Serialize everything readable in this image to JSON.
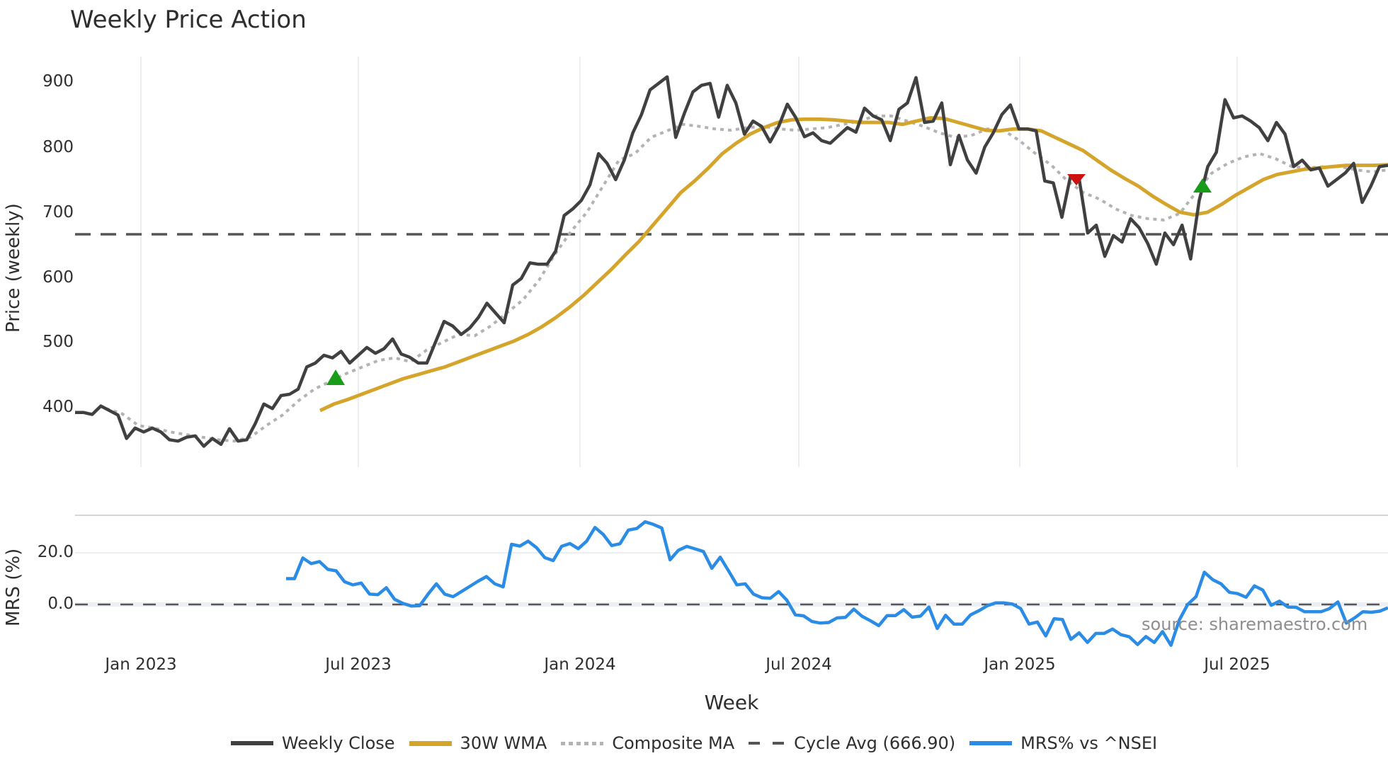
{
  "title": "Weekly Price Action",
  "colors": {
    "close": "#404040",
    "wma": "#d4a52a",
    "composite": "#b3b3b3",
    "cycle": "#555555",
    "mrs": "#2b8ce6",
    "buy": "#1a9c1a",
    "sell": "#cc1111",
    "grid": "#ebeef2"
  },
  "price_panel": {
    "ylabel": "Price (weekly)",
    "yticks": [
      "900",
      "800",
      "700",
      "600",
      "500",
      "400"
    ]
  },
  "mrs_panel": {
    "ylabel": "MRS (%)",
    "yticks": [
      "20.0",
      "0.0"
    ]
  },
  "xaxis": {
    "label": "Week",
    "ticks": [
      "Jan 2023",
      "Jul 2023",
      "Jan 2024",
      "Jul 2024",
      "Jan 2025",
      "Jul 2025"
    ]
  },
  "source": "source: sharemaestro.com",
  "legend": [
    {
      "label": "Weekly Close"
    },
    {
      "label": "30W WMA"
    },
    {
      "label": "Composite MA"
    },
    {
      "label": "Cycle Avg (666.90)"
    },
    {
      "label": "MRS% vs ^NSEI"
    }
  ],
  "chart_data": [
    {
      "type": "line",
      "title": "Weekly Price Action",
      "xlabel": "Week",
      "ylabel": "Price (weekly)",
      "ylim": [
        310,
        940
      ],
      "x_ticks": [
        "Jan 2023",
        "Jul 2023",
        "Jan 2024",
        "Jul 2024",
        "Jan 2025",
        "Jul 2025"
      ],
      "grid": true,
      "legend_position": "bottom",
      "hline": {
        "name": "Cycle Avg",
        "value": 666.9
      },
      "series": [
        {
          "name": "Weekly Close",
          "values": [
            392,
            392,
            389,
            402,
            395,
            388,
            352,
            368,
            362,
            368,
            362,
            350,
            348,
            354,
            356,
            340,
            352,
            343,
            367,
            348,
            350,
            375,
            405,
            398,
            418,
            420,
            428,
            462,
            468,
            480,
            476,
            486,
            468,
            480,
            492,
            483,
            490,
            505,
            482,
            477,
            468,
            468,
            500,
            532,
            525,
            512,
            522,
            538,
            560,
            545,
            530,
            588,
            598,
            622,
            620,
            620,
            640,
            695,
            705,
            718,
            742,
            790,
            775,
            750,
            780,
            822,
            850,
            888,
            898,
            908,
            815,
            852,
            885,
            895,
            898,
            846,
            895,
            868,
            820,
            840,
            832,
            808,
            832,
            866,
            845,
            816,
            822,
            810,
            806,
            818,
            830,
            823,
            860,
            848,
            842,
            810,
            858,
            868,
            907,
            838,
            840,
            868,
            773,
            818,
            780,
            760,
            800,
            822,
            850,
            865,
            828,
            828,
            825,
            748,
            745,
            692,
            755,
            752,
            668,
            680,
            632,
            664,
            654,
            690,
            676,
            652,
            620,
            668,
            650,
            680,
            628,
            718,
            770,
            792,
            873,
            845,
            848,
            840,
            830,
            810,
            838,
            820,
            770,
            780,
            765,
            768,
            740,
            750,
            760,
            775,
            715,
            740,
            770,
            772
          ]
        },
        {
          "name": "30W WMA",
          "values": [
            395,
            405,
            412,
            420,
            428,
            436,
            444,
            450,
            456,
            462,
            470,
            478,
            486,
            494,
            502,
            512,
            524,
            538,
            554,
            572,
            592,
            612,
            634,
            655,
            680,
            705,
            730,
            748,
            768,
            790,
            806,
            820,
            830,
            838,
            842,
            843,
            843,
            842,
            840,
            838,
            838,
            838,
            835,
            840,
            845,
            844,
            838,
            832,
            826,
            825,
            828,
            828,
            825,
            815,
            805,
            795,
            780,
            765,
            752,
            740,
            725,
            712,
            700,
            696,
            700,
            712,
            726,
            738,
            750,
            758,
            762,
            766,
            768,
            770,
            772,
            772,
            772,
            773
          ]
        },
        {
          "name": "Composite MA",
          "values": [
            398,
            390,
            372,
            368,
            362,
            358,
            354,
            350,
            348,
            354,
            372,
            388,
            410,
            428,
            440,
            452,
            462,
            472,
            476,
            470,
            488,
            500,
            512,
            510,
            525,
            545,
            565,
            595,
            635,
            670,
            700,
            740,
            780,
            790,
            815,
            825,
            835,
            832,
            828,
            826,
            830,
            832,
            828,
            826,
            828,
            830,
            835,
            840,
            848,
            848,
            840,
            832,
            822,
            815,
            818,
            828,
            826,
            810,
            790,
            772,
            748,
            730,
            720,
            705,
            695,
            690,
            688,
            698,
            730,
            760,
            775,
            785,
            790,
            782,
            770,
            768,
            770,
            770,
            765,
            762,
            765
          ]
        },
        {
          "name": "MRS% vs ^NSEI",
          "values": [
            10,
            10,
            18,
            15.8,
            16.6,
            13.6,
            13,
            8.8,
            7.6,
            8.3,
            4,
            3.8,
            6.5,
            2,
            0.4,
            -0.6,
            -0.5,
            4,
            8,
            4,
            3,
            5,
            7,
            9,
            10.8,
            8,
            6.8,
            23.3,
            22.6,
            24.5,
            22,
            18.1,
            17,
            22.5,
            23.6,
            21.6,
            24.5,
            29.8,
            27.1,
            22.8,
            23.5,
            28.8,
            29.4,
            32,
            31,
            29.6,
            17.3,
            21,
            22.5,
            21.5,
            20.5,
            14,
            18.3,
            13,
            7.6,
            8,
            4,
            2.6,
            2.4,
            5,
            1.6,
            -4,
            -4.4,
            -6.6,
            -7.2,
            -7,
            -5.2,
            -5,
            -1.8,
            -4.6,
            -6.3,
            -8.2,
            -4.3,
            -4.3,
            -2,
            -4.9,
            -4.5,
            -1,
            -9.3,
            -4.2,
            -7.6,
            -7.6,
            -4,
            -2.4,
            -0.5,
            0.6,
            0.6,
            0.2,
            -1.6,
            -7.6,
            -6.8,
            -12.2,
            -5.5,
            -5.8,
            -13.5,
            -11,
            -14.7,
            -11.2,
            -11.2,
            -9.5,
            -11.7,
            -12.5,
            -15.5,
            -12.4,
            -14.7,
            -10.5,
            -15.8,
            -6,
            0,
            3,
            12.5,
            9.6,
            8,
            4.7,
            4.2,
            2.8,
            7.2,
            5.6,
            -0.3,
            1.3,
            -1,
            -1.1,
            -2.8,
            -2.8,
            -2.8,
            -1.6,
            1,
            -7.2,
            -5.2,
            -2.8,
            -3,
            -2.6,
            -1.3
          ]
        }
      ],
      "markers": [
        {
          "type": "buy",
          "shape": "triangle-up",
          "x_approx": "Jun 2023",
          "price": 445
        },
        {
          "type": "sell",
          "shape": "triangle-down",
          "x_approx": "Mar 2025",
          "price": 755
        },
        {
          "type": "buy",
          "shape": "triangle-up",
          "x_approx": "Jun 2025",
          "price": 740
        }
      ]
    },
    {
      "type": "line",
      "title": "",
      "ylabel": "MRS (%)",
      "ylim": [
        -18,
        36
      ],
      "y_ticks": [
        0.0,
        20.0
      ],
      "hline": {
        "value": 0.0
      },
      "series_ref": "MRS% vs ^NSEI"
    }
  ]
}
